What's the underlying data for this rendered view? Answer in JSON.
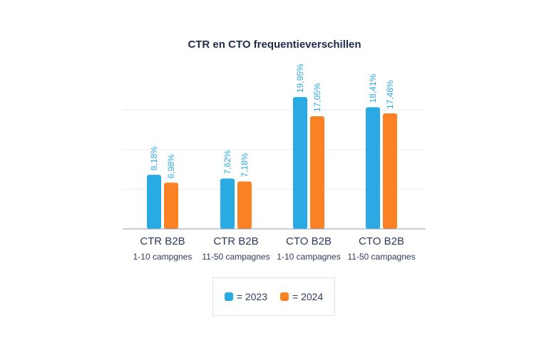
{
  "chart_data": {
    "type": "bar",
    "title": "CTR en CTO frequentieverschillen",
    "categories": [
      {
        "main": "CTR B2B",
        "sub": "1-10 campgnes"
      },
      {
        "main": "CTR B2B",
        "sub": "11-50 campagnes"
      },
      {
        "main": "CTO B2B",
        "sub": "1-10 campagnes"
      },
      {
        "main": "CTO B2B",
        "sub": "11-50 campagnes"
      }
    ],
    "series": [
      {
        "name": "2023",
        "legend_label": "= 2023",
        "color": "#29aae2",
        "values": [
          8.18,
          7.62,
          19.95,
          18.41
        ],
        "labels": [
          "8,18%",
          "7,62%",
          "19,95%",
          "18,41%"
        ]
      },
      {
        "name": "2024",
        "legend_label": "= 2024",
        "color": "#fb8224",
        "values": [
          6.98,
          7.18,
          17.05,
          17.48
        ],
        "labels": [
          "6,98%",
          "7,18%",
          "17,05%",
          "17,48%"
        ]
      }
    ],
    "ylim": [
      0,
      20.5
    ],
    "gridlines": [
      6,
      12,
      18
    ],
    "grid": true,
    "xlabel": "",
    "ylabel": "",
    "legend_position": "bottom-center",
    "label_color": "#29aae2"
  }
}
